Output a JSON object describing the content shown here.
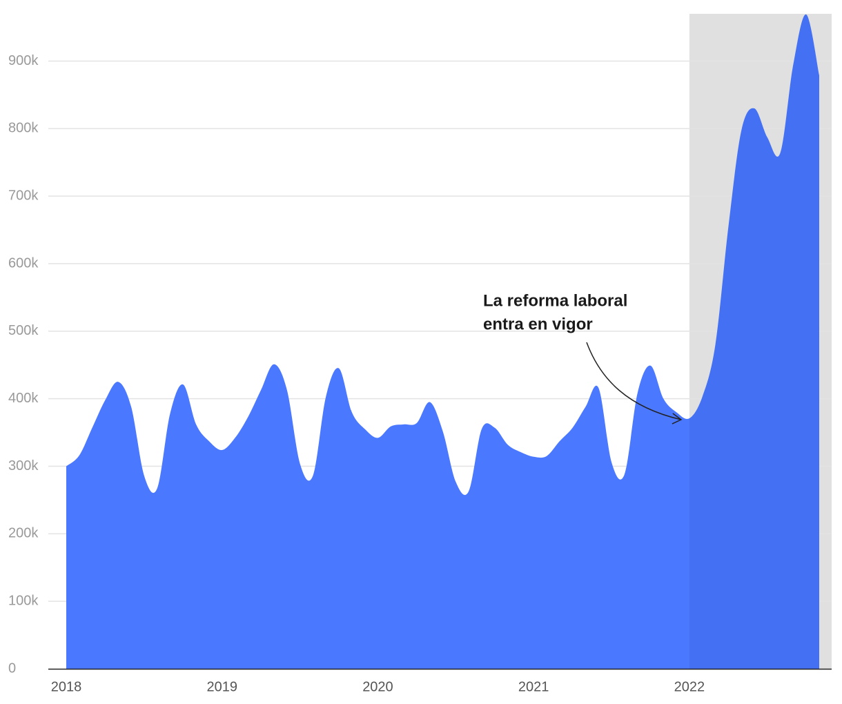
{
  "chart_data": {
    "type": "area",
    "categories": [
      "2018",
      null,
      null,
      null,
      null,
      null,
      null,
      null,
      null,
      null,
      null,
      null,
      "2019",
      null,
      null,
      null,
      null,
      null,
      null,
      null,
      null,
      null,
      null,
      null,
      "2020",
      null,
      null,
      null,
      null,
      null,
      null,
      null,
      null,
      null,
      null,
      null,
      "2021",
      null,
      null,
      null,
      null,
      null,
      null,
      null,
      null,
      null,
      null,
      null,
      "2022",
      null,
      null,
      null,
      null,
      null,
      null,
      null,
      null,
      null,
      null
    ],
    "values": [
      300000,
      316000,
      357000,
      398000,
      425000,
      388000,
      286000,
      267000,
      378000,
      421000,
      362000,
      337000,
      324000,
      342000,
      373000,
      413000,
      451000,
      413000,
      304000,
      286000,
      403000,
      445000,
      380000,
      355000,
      342000,
      359000,
      362000,
      364000,
      395000,
      352000,
      277000,
      263000,
      355000,
      357000,
      332000,
      321000,
      314000,
      315000,
      337000,
      357000,
      388000,
      416000,
      306000,
      288000,
      408000,
      449000,
      400000,
      380000,
      371000,
      403000,
      480000,
      654000,
      797000,
      830000,
      787000,
      764000,
      895000,
      969000,
      879000
    ],
    "color": "#4a78ff",
    "highlight_from": "2022",
    "highlight_color": "#e0e0e0",
    "ylim": [
      0,
      970000
    ],
    "yticks": [
      0,
      {
        "value": 100000,
        "label": "100k"
      },
      {
        "value": 200000,
        "label": "200k"
      },
      {
        "value": 300000,
        "label": "300k"
      },
      {
        "value": 400000,
        "label": "400k"
      },
      {
        "value": 500000,
        "label": "500k"
      },
      {
        "value": 600000,
        "label": "600k"
      },
      {
        "value": 700000,
        "label": "700k"
      },
      {
        "value": 800000,
        "label": "800k"
      },
      {
        "value": 900000,
        "label": "900k"
      }
    ],
    "grid": true,
    "annotation": {
      "lines": [
        "La reforma laboral",
        "entra en vigor"
      ],
      "point": 48
    }
  }
}
